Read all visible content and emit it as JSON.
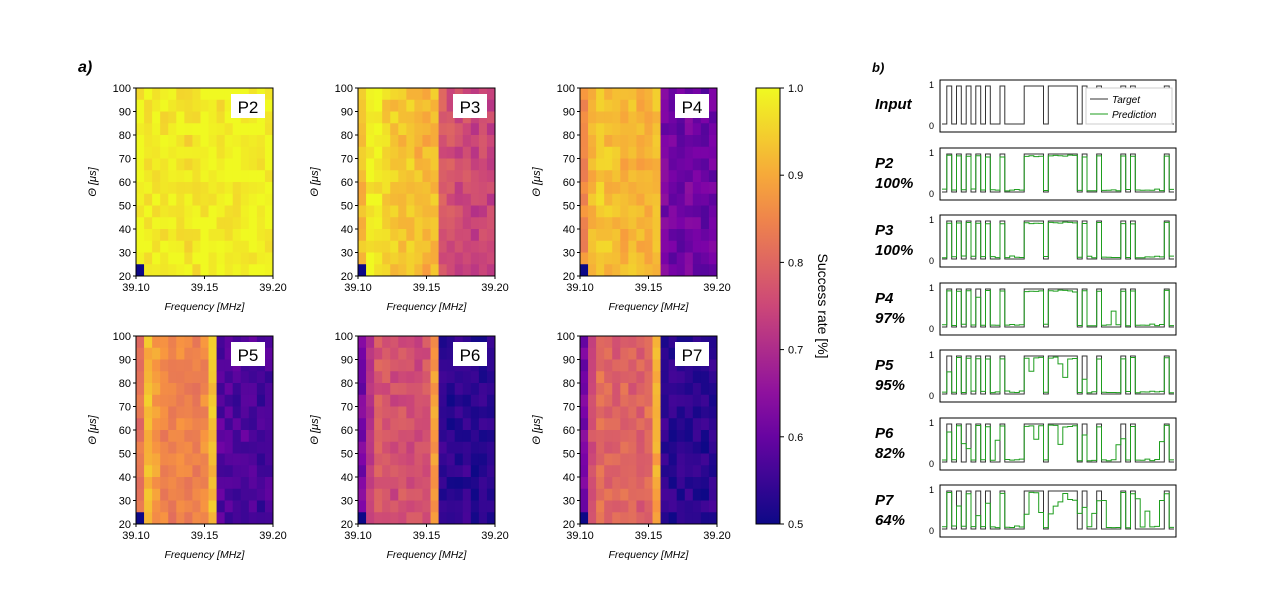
{
  "panel_a_label": "a)",
  "panel_b_label": "b)",
  "heatmap_axes": {
    "xlabel": "Frequency [MHz]",
    "ylabel": "Θ [μs]",
    "xticks": [
      "39.10",
      "39.15",
      "39.20"
    ],
    "yticks": [
      "20",
      "30",
      "40",
      "50",
      "60",
      "70",
      "80",
      "90",
      "100"
    ]
  },
  "colorbar": {
    "label": "Success rate [%]",
    "ticks": [
      "0.5",
      "0.6",
      "0.7",
      "0.8",
      "0.9",
      "1.0"
    ],
    "colormap": "plasma",
    "range": [
      0.5,
      1.0
    ]
  },
  "trace_legend": {
    "target": "Target",
    "prediction": "Prediction"
  },
  "trace_rows": [
    {
      "name": "Input",
      "percent": ""
    },
    {
      "name": "P2",
      "percent": "100%"
    },
    {
      "name": "P3",
      "percent": "100%"
    },
    {
      "name": "P4",
      "percent": "97%"
    },
    {
      "name": "P5",
      "percent": "95%"
    },
    {
      "name": "P6",
      "percent": "82%"
    },
    {
      "name": "P7",
      "percent": "64%"
    }
  ],
  "trace_yticks": [
    "0",
    "1"
  ],
  "colors": {
    "target": "#333333",
    "prediction": "#1e9e1e"
  },
  "chart_data": [
    {
      "type": "heatmap",
      "panel": "P2",
      "x_range": [
        39.1,
        39.2
      ],
      "y_range": [
        20,
        100
      ],
      "grid": "17 columns x 16 rows",
      "values_description_free": true,
      "column_levels": [
        0.99,
        0.98,
        0.99,
        0.98,
        0.99,
        0.98,
        0.97,
        0.98,
        0.99,
        0.99,
        0.98,
        0.99,
        0.99,
        0.99,
        0.99,
        0.99,
        0.99
      ],
      "low_corner": [
        39.1,
        20,
        0.5
      ]
    },
    {
      "type": "heatmap",
      "panel": "P3",
      "x_range": [
        39.1,
        39.2
      ],
      "y_range": [
        20,
        100
      ],
      "column_levels": [
        0.92,
        0.99,
        0.98,
        0.95,
        0.94,
        0.93,
        0.94,
        0.92,
        0.91,
        0.93,
        0.78,
        0.77,
        0.75,
        0.76,
        0.74,
        0.75,
        0.74
      ],
      "low_corner": [
        39.1,
        20,
        0.5
      ]
    },
    {
      "type": "heatmap",
      "panel": "P4",
      "x_range": [
        39.1,
        39.2
      ],
      "y_range": [
        20,
        100
      ],
      "column_levels": [
        0.86,
        0.92,
        0.94,
        0.93,
        0.92,
        0.91,
        0.92,
        0.91,
        0.92,
        0.93,
        0.62,
        0.61,
        0.6,
        0.62,
        0.61,
        0.6,
        0.61
      ],
      "low_corner": [
        39.1,
        20,
        0.5
      ]
    },
    {
      "type": "heatmap",
      "panel": "P5",
      "x_range": [
        39.1,
        39.2
      ],
      "y_range": [
        20,
        100
      ],
      "column_levels": [
        0.82,
        0.92,
        0.88,
        0.85,
        0.84,
        0.85,
        0.84,
        0.84,
        0.86,
        0.93,
        0.58,
        0.57,
        0.57,
        0.58,
        0.57,
        0.56,
        0.57
      ],
      "low_corner": [
        39.1,
        20,
        0.5
      ]
    },
    {
      "type": "heatmap",
      "panel": "P6",
      "x_range": [
        39.1,
        39.2
      ],
      "y_range": [
        20,
        100
      ],
      "column_levels": [
        0.62,
        0.72,
        0.78,
        0.77,
        0.76,
        0.77,
        0.76,
        0.76,
        0.77,
        0.88,
        0.54,
        0.53,
        0.53,
        0.54,
        0.53,
        0.53,
        0.54
      ],
      "low_corner": [
        39.1,
        20,
        0.5
      ]
    },
    {
      "type": "heatmap",
      "panel": "P7",
      "x_range": [
        39.1,
        39.2
      ],
      "y_range": [
        20,
        100
      ],
      "column_levels": [
        0.62,
        0.76,
        0.81,
        0.8,
        0.79,
        0.8,
        0.79,
        0.79,
        0.81,
        0.9,
        0.54,
        0.53,
        0.53,
        0.54,
        0.53,
        0.53,
        0.54
      ],
      "low_corner": [
        39.1,
        20,
        0.5
      ]
    }
  ],
  "traces": {
    "x_count": 48,
    "target": [
      0,
      1,
      0,
      1,
      0,
      1,
      0,
      1,
      0,
      1,
      0,
      0,
      1,
      0,
      0,
      0,
      0,
      1,
      1,
      1,
      1,
      0,
      1,
      1,
      1,
      1,
      1,
      1,
      0,
      1,
      0,
      0,
      1,
      0,
      0,
      0,
      0,
      1,
      0,
      1,
      0,
      0,
      0,
      0,
      0,
      0,
      1,
      0
    ],
    "accuracy": [
      1.0,
      1.0,
      0.97,
      0.95,
      0.82,
      0.64
    ]
  }
}
